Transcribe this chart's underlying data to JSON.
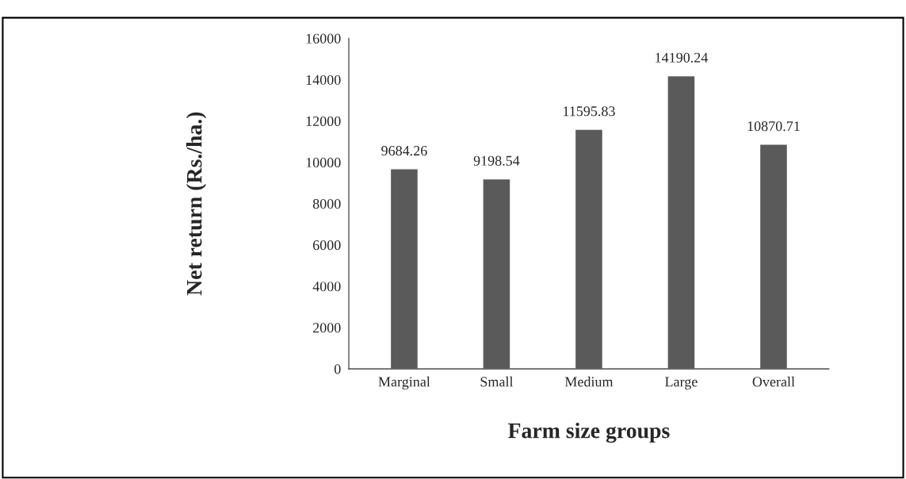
{
  "chart_data": {
    "type": "bar",
    "xlabel": "Farm size groups",
    "ylabel": "Net return (Rs./ha.)",
    "categories": [
      "Marginal",
      "Small",
      "Medium",
      "Large",
      "Overall"
    ],
    "values": [
      9684.26,
      9198.54,
      11595.83,
      14190.24,
      10870.71
    ],
    "color": "#5a5a5a",
    "data_labels": true,
    "ylim": [
      0,
      16000
    ],
    "yticks": [
      0,
      2000,
      4000,
      6000,
      8000,
      10000,
      12000,
      14000,
      16000
    ],
    "grid": false
  }
}
